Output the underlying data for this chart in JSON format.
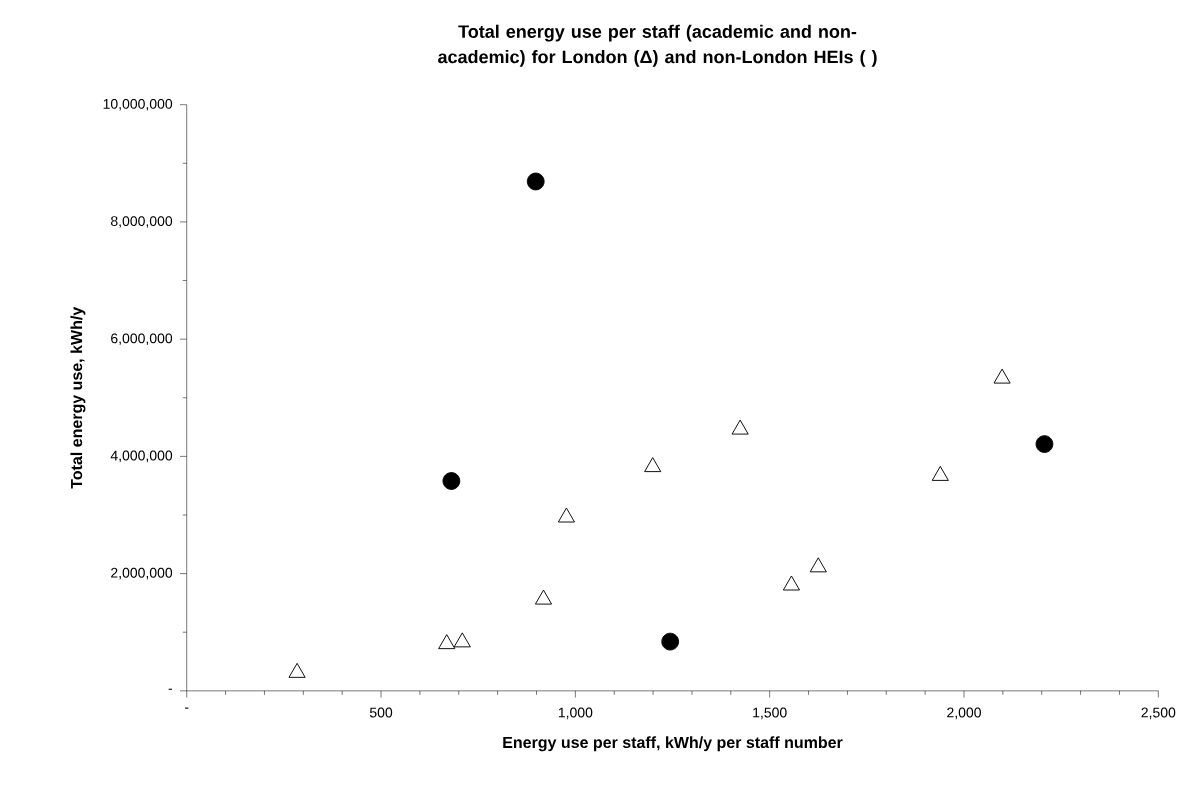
{
  "chart_data": {
    "type": "scatter",
    "title": "Total energy use per staff (academic and non-academic) for London (Δ) and non-London HEIs (  )",
    "xlabel": "Energy use per staff, kWh/y per staff number",
    "ylabel": "Total energy use, kWh/y",
    "xlim": [
      0,
      2500
    ],
    "ylim": [
      0,
      10000000
    ],
    "xticks": [
      {
        "value": 0,
        "label": "-"
      },
      {
        "value": 500,
        "label": "500"
      },
      {
        "value": 1000,
        "label": "1,000"
      },
      {
        "value": 1500,
        "label": "1,500"
      },
      {
        "value": 2000,
        "label": "2,000"
      },
      {
        "value": 2500,
        "label": "2,500"
      }
    ],
    "yticks": [
      {
        "value": 0,
        "label": "-"
      },
      {
        "value": 2000000,
        "label": "2,000,000"
      },
      {
        "value": 4000000,
        "label": "4,000,000"
      },
      {
        "value": 6000000,
        "label": "6,000,000"
      },
      {
        "value": 8000000,
        "label": "8,000,000"
      },
      {
        "value": 10000000,
        "label": "10,000,000"
      }
    ],
    "grid": false,
    "legend": false,
    "series": [
      {
        "color": "#000000",
        "marker": "triangle",
        "x": [
          284,
          669,
          709,
          918,
          977,
          1199,
          1424,
          1556,
          1625,
          1939,
          2098
        ],
        "values": [
          310000,
          800000,
          830000,
          1560000,
          2960000,
          3820000,
          4460000,
          1800000,
          2110000,
          3670000,
          5330000
        ]
      },
      {
        "color": "#000000",
        "marker": "circle",
        "x": [
          681,
          898,
          1244,
          2207
        ],
        "values": [
          3580000,
          8690000,
          840000,
          4210000
        ]
      }
    ]
  }
}
